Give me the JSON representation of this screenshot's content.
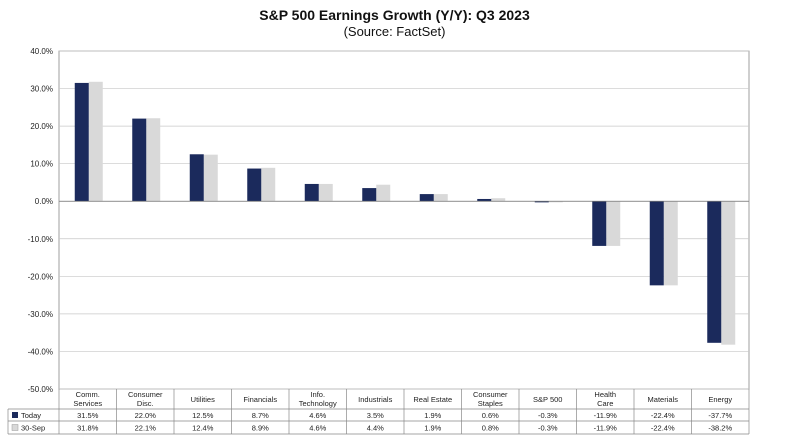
{
  "chart_data": {
    "type": "bar",
    "title": "S&P 500 Earnings Growth (Y/Y): Q3 2023",
    "subtitle": "(Source: FactSet)",
    "categories": [
      [
        "Comm.",
        "Services"
      ],
      [
        "Consumer",
        "Disc."
      ],
      [
        "Utilities"
      ],
      [
        "Financials"
      ],
      [
        "Info.",
        "Technology"
      ],
      [
        "Industrials"
      ],
      [
        "Real Estate"
      ],
      [
        "Consumer",
        "Staples"
      ],
      [
        "S&P 500"
      ],
      [
        "Health",
        "Care"
      ],
      [
        "Materials"
      ],
      [
        "Energy"
      ]
    ],
    "series": [
      {
        "name": "Today",
        "color": "#1b2a5c",
        "values": [
          31.5,
          22.0,
          12.5,
          8.7,
          4.6,
          3.5,
          1.9,
          0.6,
          -0.3,
          -11.9,
          -22.4,
          -37.7
        ],
        "labels": [
          "31.5%",
          "22.0%",
          "12.5%",
          "8.7%",
          "4.6%",
          "3.5%",
          "1.9%",
          "0.6%",
          "-0.3%",
          "-11.9%",
          "-22.4%",
          "-37.7%"
        ]
      },
      {
        "name": "30-Sep",
        "color": "#d9d9d9",
        "values": [
          31.8,
          22.1,
          12.4,
          8.9,
          4.6,
          4.4,
          1.9,
          0.8,
          -0.3,
          -11.9,
          -22.4,
          -38.2
        ],
        "labels": [
          "31.8%",
          "22.1%",
          "12.4%",
          "8.9%",
          "4.6%",
          "4.4%",
          "1.9%",
          "0.8%",
          "-0.3%",
          "-11.9%",
          "-22.4%",
          "-38.2%"
        ]
      }
    ],
    "ylim": [
      -50,
      40
    ],
    "yticks": [
      40,
      30,
      20,
      10,
      0,
      -10,
      -20,
      -30,
      -40,
      -50
    ],
    "ytick_labels": [
      "40.0%",
      "30.0%",
      "20.0%",
      "10.0%",
      "0.0%",
      "-10.0%",
      "-20.0%",
      "-30.0%",
      "-40.0%",
      "-50.0%"
    ],
    "grid": true,
    "legend": "data-table"
  }
}
